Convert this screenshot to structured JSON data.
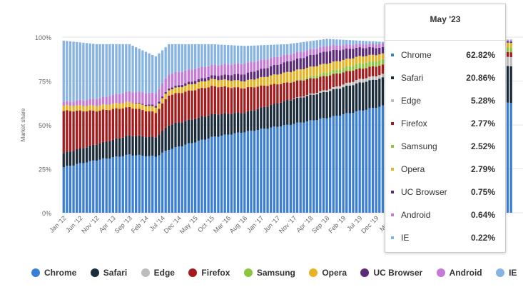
{
  "chart_data": {
    "type": "bar",
    "stacked": true,
    "ylabel": "Market share",
    "yticks": [
      "0%",
      "25%",
      "50%",
      "75%",
      "100%"
    ],
    "ylim": [
      0,
      100
    ],
    "grid": true,
    "legend_position": "bottom",
    "xtick_labels": [
      "Jan '12",
      "Jun '12",
      "Nov '12",
      "Apr '13",
      "Sep '13",
      "Feb '14",
      "Jul '14",
      "Dec '14",
      "May '15",
      "Oct '15",
      "Mar '16",
      "Aug '16",
      "Jan '17",
      "Jun '17",
      "Nov '17",
      "Apr '18",
      "Sep '18",
      "Feb '19",
      "Jul '19",
      "Dec '19",
      "May '2"
    ],
    "series": [
      {
        "name": "Chrome",
        "color": "#3a7fd5"
      },
      {
        "name": "Safari",
        "color": "#1a2b3c"
      },
      {
        "name": "Edge",
        "color": "#bdbdbd"
      },
      {
        "name": "Firefox",
        "color": "#a51b1b"
      },
      {
        "name": "Samsung",
        "color": "#8cc63f"
      },
      {
        "name": "Opera",
        "color": "#e6b422"
      },
      {
        "name": "UC Browser",
        "color": "#5b2a7a"
      },
      {
        "name": "Android",
        "color": "#c67ad8"
      },
      {
        "name": "IE",
        "color": "#86b3e3"
      }
    ],
    "keyframes": [
      {
        "i": 0,
        "v": [
          26,
          8,
          0,
          24,
          0,
          3,
          0,
          2,
          35
        ]
      },
      {
        "i": 10,
        "v": [
          30,
          9,
          0,
          19,
          0,
          3,
          0,
          4,
          31
        ]
      },
      {
        "i": 20,
        "v": [
          33,
          11,
          0,
          16,
          0,
          3,
          0,
          6,
          27
        ]
      },
      {
        "i": 28,
        "v": [
          32,
          11,
          0,
          14,
          0,
          3,
          1,
          7,
          21
        ]
      },
      {
        "i": 32,
        "v": [
          36,
          14,
          0,
          17,
          0,
          3,
          1,
          8,
          17
        ]
      },
      {
        "i": 45,
        "v": [
          43,
          13,
          0,
          16,
          0,
          4,
          2,
          6,
          12
        ]
      },
      {
        "i": 55,
        "v": [
          46,
          11,
          0,
          14,
          0,
          4,
          4,
          6,
          10
        ]
      },
      {
        "i": 68,
        "v": [
          50,
          14,
          0,
          10,
          0,
          6,
          6,
          4,
          6
        ]
      },
      {
        "i": 80,
        "v": [
          54,
          15,
          1,
          8,
          2,
          5,
          7,
          3,
          4
        ]
      },
      {
        "i": 90,
        "v": [
          58,
          16,
          2,
          6,
          3,
          4,
          5,
          2,
          2
        ]
      },
      {
        "i": 100,
        "v": [
          62,
          16,
          2,
          5,
          3,
          3,
          3,
          2,
          1
        ]
      },
      {
        "i": 112,
        "v": [
          63,
          18,
          3,
          4,
          3,
          3,
          2,
          1,
          1
        ]
      },
      {
        "i": 123,
        "v": [
          63,
          20,
          4,
          3,
          3,
          3,
          1,
          1,
          0.5
        ]
      },
      {
        "i": 136,
        "v": [
          62.82,
          20.86,
          5.28,
          2.77,
          2.52,
          2.79,
          0.75,
          0.64,
          0.22
        ]
      }
    ],
    "tooltip_index": 123,
    "tooltip": {
      "title": "May '23",
      "rows": [
        {
          "name": "Chrome",
          "value": "62.82%"
        },
        {
          "name": "Safari",
          "value": "20.86%"
        },
        {
          "name": "Edge",
          "value": "5.28%"
        },
        {
          "name": "Firefox",
          "value": "2.77%"
        },
        {
          "name": "Samsung",
          "value": "2.52%"
        },
        {
          "name": "Opera",
          "value": "2.79%"
        },
        {
          "name": "UC Browser",
          "value": "0.75%"
        },
        {
          "name": "Android",
          "value": "0.64%"
        },
        {
          "name": "IE",
          "value": "0.22%"
        }
      ]
    }
  }
}
